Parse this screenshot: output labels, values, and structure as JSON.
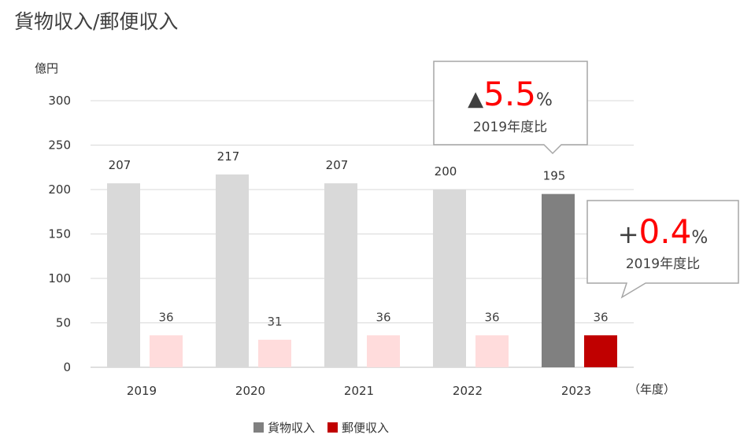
{
  "title": "貨物収入/郵便収入",
  "chart_data": {
    "type": "bar",
    "ylabel": "億円",
    "xlabel": "（年度）",
    "ylim": [
      0,
      300
    ],
    "yticks": [
      0,
      50,
      100,
      150,
      200,
      250,
      300
    ],
    "categories": [
      "2019",
      "2020",
      "2021",
      "2022",
      "2023"
    ],
    "series": [
      {
        "name": "貨物収入",
        "values": [
          207,
          217,
          207,
          200,
          195
        ]
      },
      {
        "name": "郵便収入",
        "values": [
          36,
          31,
          36,
          36,
          36
        ]
      }
    ],
    "colors": {
      "cargo_highlight": "#808080",
      "cargo_faded": "#d9d9d9",
      "mail_highlight": "#c00000",
      "mail_faded": "#ffdcdc"
    },
    "grid": true,
    "legend": "bottom"
  },
  "callouts": {
    "cargo": {
      "symbol": "▲",
      "value": "5.5",
      "unit": "%",
      "caption": "2019年度比"
    },
    "mail": {
      "symbol": "+",
      "value": "0.4",
      "unit": "%",
      "caption": "2019年度比"
    }
  }
}
